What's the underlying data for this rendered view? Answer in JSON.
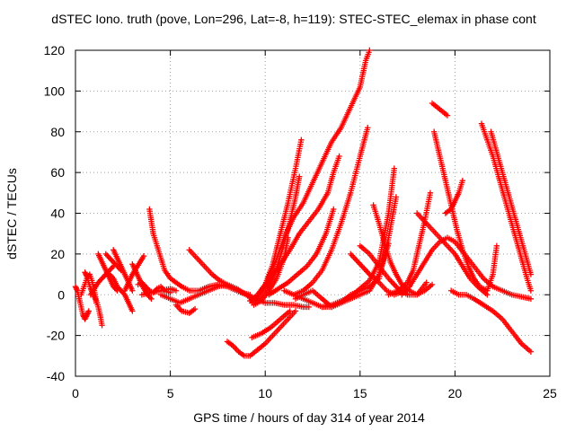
{
  "chart_data": {
    "type": "scatter",
    "title": "dSTEC Iono. truth (pove, Lon=296, Lat=-8, h=119): STEC-STEC_elemax in phase cont",
    "xlabel": "GPS time / hours of day 314 of year 2014",
    "ylabel": "dSTEC  / TECUs",
    "xlim": [
      0,
      25
    ],
    "ylim": [
      -40,
      120
    ],
    "xticks": [
      "0",
      "5",
      "10",
      "15",
      "20",
      "25"
    ],
    "yticks": [
      "-40",
      "-20",
      "0",
      "20",
      "40",
      "60",
      "80",
      "100",
      "120"
    ],
    "grid": true,
    "legend": "none",
    "marker": "+",
    "color": "#ff0000",
    "series": [
      {
        "x": [
          0.0,
          0.1,
          0.2,
          0.3,
          0.4,
          0.5,
          0.6,
          0.7
        ],
        "y": [
          4,
          2,
          -2,
          -6,
          -10,
          -12,
          -10,
          -8
        ]
      },
      {
        "x": [
          0.3,
          0.45,
          0.6,
          0.75,
          0.9,
          1.0,
          1.1
        ],
        "y": [
          0,
          4,
          8,
          10,
          6,
          2,
          -4
        ]
      },
      {
        "x": [
          0.5,
          0.6,
          0.7,
          0.8,
          0.9,
          1.0,
          1.1,
          1.2,
          1.3,
          1.4
        ],
        "y": [
          11,
          9,
          6,
          3,
          1,
          -1,
          -3,
          -6,
          -10,
          -15
        ]
      },
      {
        "x": [
          1.2,
          1.4,
          1.6,
          1.8,
          2.0,
          2.2
        ],
        "y": [
          20,
          16,
          12,
          8,
          4,
          2
        ]
      },
      {
        "x": [
          0.8,
          1.0,
          1.2,
          1.4,
          1.6,
          1.8,
          2.0
        ],
        "y": [
          0,
          3,
          6,
          8,
          10,
          12,
          14
        ]
      },
      {
        "x": [
          1.6,
          1.8,
          2.0,
          2.2,
          2.4
        ],
        "y": [
          20,
          18,
          16,
          14,
          12
        ]
      },
      {
        "x": [
          1.8,
          2.0,
          2.2,
          2.4,
          2.6,
          2.8,
          3.0
        ],
        "y": [
          10,
          8,
          4,
          2,
          0,
          -4,
          -8
        ]
      },
      {
        "x": [
          2.0,
          2.2,
          2.4,
          2.6,
          2.8,
          3.0
        ],
        "y": [
          22,
          18,
          14,
          10,
          6,
          2
        ]
      },
      {
        "x": [
          2.6,
          2.8,
          3.0,
          3.2,
          3.4,
          3.6
        ],
        "y": [
          2,
          6,
          10,
          13,
          16,
          19
        ]
      },
      {
        "x": [
          3.0,
          3.2,
          3.4,
          3.6,
          3.8,
          4.0
        ],
        "y": [
          15,
          11,
          7,
          3,
          0,
          -2
        ]
      },
      {
        "x": [
          3.3,
          3.5,
          3.7,
          3.9,
          4.1,
          4.3,
          4.5,
          4.7,
          5.0
        ],
        "y": [
          5,
          6,
          4,
          2,
          1,
          3,
          4,
          2,
          1
        ]
      },
      {
        "x": [
          3.9,
          4.0,
          4.1,
          4.3,
          4.5,
          4.7,
          5.0,
          5.3,
          5.6,
          6.0,
          6.5,
          7.0,
          7.5,
          8.0,
          8.5,
          9.0,
          9.5,
          10.0,
          10.5,
          11.0,
          11.5,
          12.0,
          12.3
        ],
        "y": [
          42,
          36,
          30,
          24,
          18,
          12,
          8,
          6,
          4,
          2,
          2,
          4,
          5,
          4,
          2,
          0,
          -2,
          -4,
          -4,
          -5,
          -5,
          -6,
          -6
        ]
      },
      {
        "x": [
          3.5,
          4.0,
          4.5,
          5.0,
          5.3
        ],
        "y": [
          0,
          1,
          2,
          3,
          2
        ]
      },
      {
        "x": [
          4.5,
          5.0,
          5.5,
          6.0,
          6.5,
          7.0,
          7.5,
          8.0,
          8.5,
          9.0,
          9.3
        ],
        "y": [
          0,
          -2,
          -4,
          -2,
          0,
          2,
          4,
          5,
          3,
          0,
          -2
        ]
      },
      {
        "x": [
          5.3,
          5.6,
          6.0,
          6.3
        ],
        "y": [
          -5,
          -8,
          -9,
          -7
        ]
      },
      {
        "x": [
          6.0,
          6.4,
          6.8,
          7.2,
          7.6,
          8.0,
          8.4,
          8.8,
          9.2
        ],
        "y": [
          22,
          18,
          14,
          10,
          7,
          5,
          3,
          1,
          0
        ]
      },
      {
        "x": [
          8.0,
          8.3,
          8.6,
          8.9,
          9.2,
          9.6,
          10.0,
          10.4,
          10.8,
          11.2,
          11.6
        ],
        "y": [
          -23,
          -25,
          -28,
          -30,
          -30,
          -27,
          -24,
          -20,
          -16,
          -12,
          -8
        ]
      },
      {
        "x": [
          9.2,
          9.6,
          10.0,
          10.4,
          10.8,
          11.2,
          11.6,
          11.9
        ],
        "y": [
          -3,
          0,
          5,
          15,
          30,
          45,
          62,
          76
        ]
      },
      {
        "x": [
          9.3,
          9.7,
          10.1,
          10.5,
          10.9,
          11.3,
          11.6,
          11.8
        ],
        "y": [
          -4,
          -1,
          3,
          10,
          22,
          36,
          48,
          58
        ]
      },
      {
        "x": [
          9.4,
          9.8,
          10.2,
          10.6,
          11.0,
          11.2
        ],
        "y": [
          -5,
          -3,
          2,
          8,
          18,
          28
        ]
      },
      {
        "x": [
          9.6,
          10.0,
          10.5,
          11.0,
          11.5,
          12.0,
          12.5,
          13.0,
          13.5,
          14.0,
          14.5,
          15.0,
          15.3,
          15.5
        ],
        "y": [
          0,
          5,
          15,
          28,
          38,
          45,
          55,
          65,
          75,
          82,
          92,
          102,
          115,
          120
        ]
      },
      {
        "x": [
          9.8,
          10.3,
          10.8,
          11.3,
          11.8,
          12.3,
          12.8,
          13.3,
          13.6,
          13.9
        ],
        "y": [
          2,
          8,
          15,
          22,
          30,
          36,
          42,
          50,
          60,
          68
        ]
      },
      {
        "x": [
          10.2,
          10.7,
          11.2,
          11.7,
          12.2,
          12.7,
          13.2,
          13.6
        ],
        "y": [
          0,
          3,
          6,
          10,
          14,
          20,
          30,
          42
        ]
      },
      {
        "x": [
          11.5,
          12.0,
          12.5,
          13.0,
          13.5,
          14.0,
          14.5,
          15.0,
          15.4
        ],
        "y": [
          0,
          2,
          6,
          12,
          22,
          35,
          50,
          68,
          82
        ]
      },
      {
        "x": [
          9.3,
          9.8,
          10.3,
          10.8,
          11.3
        ],
        "y": [
          -21,
          -19,
          -16,
          -12,
          -8
        ]
      },
      {
        "x": [
          11.0,
          11.5,
          12.0,
          12.5,
          13.0,
          13.5,
          14.0,
          14.5,
          15.0,
          15.5,
          16.0,
          16.5
        ],
        "y": [
          2,
          0,
          -2,
          -4,
          -6,
          -6,
          -4,
          -2,
          0,
          2,
          10,
          25
        ]
      },
      {
        "x": [
          11.6,
          12.0,
          12.5,
          13.0,
          13.5,
          14.0,
          14.5,
          15.0,
          15.5,
          16.0,
          16.5,
          16.9
        ],
        "y": [
          -2,
          0,
          2,
          -2,
          -6,
          -4,
          0,
          2,
          4,
          8,
          28,
          48
        ]
      },
      {
        "x": [
          13.0,
          13.5,
          14.0,
          14.5,
          15.0,
          15.5,
          16.0,
          16.5,
          16.8
        ],
        "y": [
          -6,
          -5,
          -3,
          -1,
          3,
          7,
          16,
          40,
          62
        ]
      },
      {
        "x": [
          14.5,
          15.0,
          15.5,
          16.0,
          16.4,
          16.8,
          17.1,
          17.4
        ],
        "y": [
          20,
          15,
          10,
          6,
          2,
          0,
          1,
          3
        ]
      },
      {
        "x": [
          15.0,
          15.5,
          16.0,
          16.5,
          17.0,
          17.5,
          18.0,
          18.5
        ],
        "y": [
          24,
          20,
          14,
          8,
          3,
          0,
          0,
          6
        ]
      },
      {
        "x": [
          15.7,
          16.0,
          16.3,
          16.6,
          16.9,
          17.2,
          17.6,
          18.0,
          18.4,
          18.8
        ],
        "y": [
          44,
          35,
          25,
          16,
          10,
          5,
          2,
          0,
          2,
          5
        ]
      },
      {
        "x": [
          16.5,
          17.0,
          17.5,
          17.8,
          18.1,
          18.4,
          18.7
        ],
        "y": [
          0,
          2,
          6,
          12,
          24,
          36,
          50
        ]
      },
      {
        "x": [
          17.2,
          17.6,
          18.0,
          18.4,
          18.8,
          19.2,
          19.6,
          20.0,
          20.5,
          21.0,
          21.5,
          22.0,
          22.5,
          23.0,
          23.5,
          24.0
        ],
        "y": [
          0,
          4,
          10,
          16,
          22,
          26,
          28,
          26,
          20,
          14,
          8,
          4,
          2,
          0,
          -1,
          -2
        ]
      },
      {
        "x": [
          18.0,
          18.4,
          18.8,
          19.2,
          19.6,
          20.0,
          20.4,
          20.8,
          21.2,
          21.7
        ],
        "y": [
          40,
          36,
          32,
          28,
          24,
          20,
          14,
          8,
          4,
          0
        ]
      },
      {
        "x": [
          18.8,
          19.2,
          19.6
        ],
        "y": [
          94,
          91,
          88
        ]
      },
      {
        "x": [
          18.9,
          19.2,
          19.5,
          19.8,
          20.1,
          20.4,
          20.7,
          21.0,
          21.3,
          21.7,
          22.0,
          22.2
        ],
        "y": [
          80,
          68,
          56,
          44,
          32,
          22,
          14,
          8,
          4,
          2,
          10,
          24
        ]
      },
      {
        "x": [
          19.5,
          19.8,
          20.0,
          20.2,
          20.4
        ],
        "y": [
          40,
          42,
          46,
          50,
          56
        ]
      },
      {
        "x": [
          21.4,
          21.7,
          22.0,
          22.3,
          22.6,
          22.9,
          23.2,
          23.5,
          23.8,
          24.0
        ],
        "y": [
          84,
          76,
          68,
          58,
          48,
          38,
          28,
          18,
          8,
          2
        ]
      },
      {
        "x": [
          21.9,
          22.2,
          22.5,
          22.8,
          23.1,
          23.4,
          23.7,
          24.0
        ],
        "y": [
          80,
          70,
          60,
          50,
          40,
          30,
          20,
          10
        ]
      },
      {
        "x": [
          19.8,
          20.2,
          20.6,
          21.0,
          21.5,
          22.0,
          22.5,
          23.0,
          23.5,
          24.0
        ],
        "y": [
          2,
          0,
          0,
          -2,
          -5,
          -8,
          -12,
          -18,
          -24,
          -28
        ]
      }
    ]
  }
}
